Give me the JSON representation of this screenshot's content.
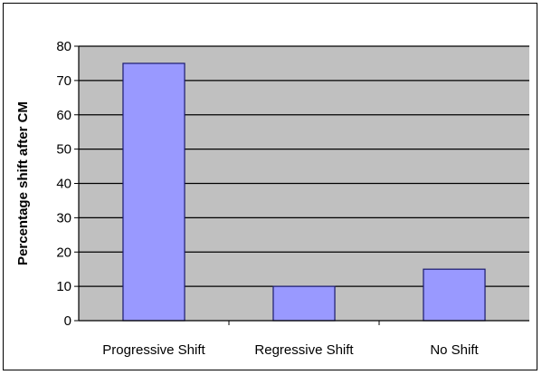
{
  "chart_data": {
    "type": "bar",
    "title": "",
    "xlabel": "",
    "ylabel": "Percentage shift after CM",
    "categories": [
      "Progressive Shift",
      "Regressive Shift",
      "No Shift"
    ],
    "values": [
      75,
      10,
      15
    ],
    "ylim": [
      0,
      80
    ],
    "yticks": [
      0,
      10,
      20,
      30,
      40,
      50,
      60,
      70,
      80
    ],
    "grid": true,
    "legend": "none",
    "colors": {
      "bar_fill": "#9999ff",
      "bar_stroke": "#1a1a6e",
      "plot_background": "#c0c0c0",
      "gridline": "#000000"
    }
  }
}
